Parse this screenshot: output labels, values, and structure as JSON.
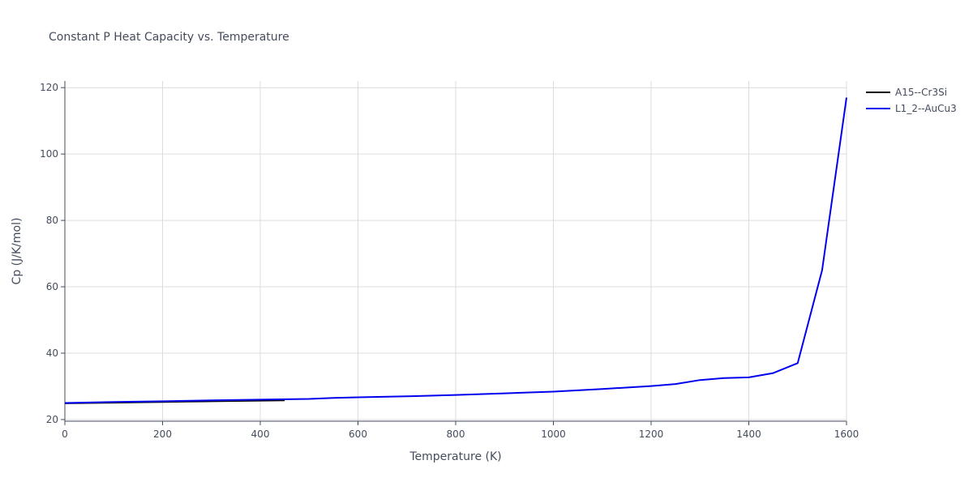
{
  "chart_data": {
    "type": "line",
    "title": "Constant P Heat Capacity vs. Temperature",
    "xlabel": "Temperature (K)",
    "ylabel": "Cp (J/K/mol)",
    "xlim": [
      0,
      1600
    ],
    "ylim": [
      19.5,
      122
    ],
    "xticks": [
      0,
      200,
      400,
      600,
      800,
      1000,
      1200,
      1400,
      1600
    ],
    "yticks": [
      20,
      40,
      60,
      80,
      100,
      120
    ],
    "grid": true,
    "legend_position": "top-right",
    "series": [
      {
        "name": "A15--Cr3Si",
        "color": "#000000",
        "x": [
          0,
          50,
          100,
          150,
          200,
          250,
          300,
          350,
          400,
          450
        ],
        "y": [
          24.9,
          25.0,
          25.1,
          25.2,
          25.3,
          25.4,
          25.5,
          25.6,
          25.7,
          25.8
        ]
      },
      {
        "name": "L1_2--AuCu3",
        "color": "#0000ee",
        "x": [
          0,
          100,
          200,
          300,
          400,
          500,
          550,
          600,
          700,
          800,
          900,
          1000,
          1100,
          1200,
          1250,
          1300,
          1350,
          1400,
          1450,
          1500,
          1550,
          1600
        ],
        "y": [
          25.0,
          25.3,
          25.5,
          25.8,
          26.0,
          26.2,
          26.5,
          26.7,
          27.0,
          27.4,
          27.9,
          28.4,
          29.2,
          30.1,
          30.7,
          31.9,
          32.5,
          32.7,
          34.0,
          37.0,
          65.0,
          117.0
        ]
      }
    ]
  }
}
